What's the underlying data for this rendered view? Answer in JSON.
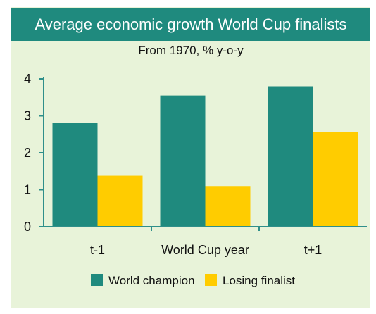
{
  "chart_data": {
    "type": "bar",
    "title": "Average economic growth World Cup finalists",
    "subtitle": "From 1970, % y-o-y",
    "categories": [
      "t-1",
      "World Cup year",
      "t+1"
    ],
    "series": [
      {
        "name": "World champion",
        "values": [
          2.8,
          3.55,
          3.8
        ],
        "color": "#1f8a7e"
      },
      {
        "name": "Losing finalist",
        "values": [
          1.38,
          1.1,
          2.56
        ],
        "color": "#ffcc00"
      }
    ],
    "ylim": [
      0,
      4
    ],
    "yticks": [
      "0",
      "1",
      "2",
      "3",
      "4"
    ],
    "grid": false,
    "legend_position": "bottom"
  },
  "colors": {
    "panel": "#e8f3d9",
    "title_bar": "#1f8a7e",
    "axis": "#2f8f8a"
  }
}
